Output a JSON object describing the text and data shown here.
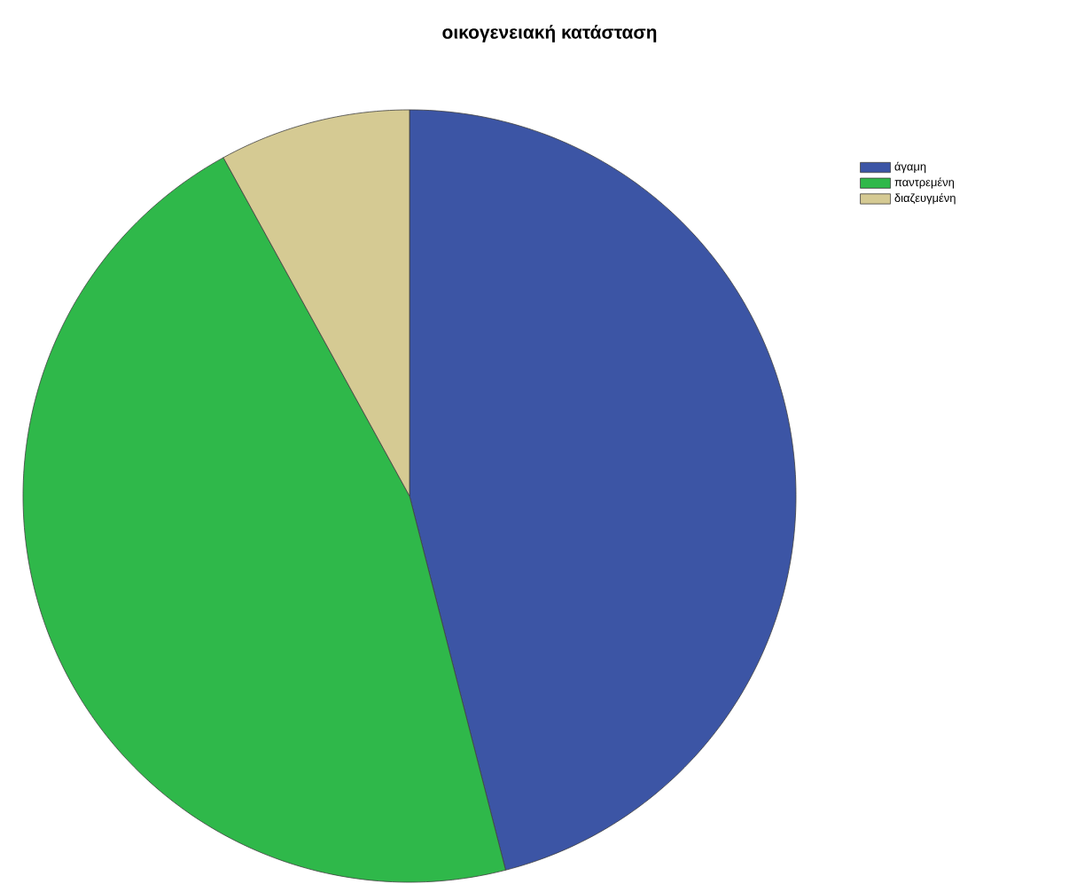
{
  "chart_data": {
    "type": "pie",
    "title": "οικογενειακή κατάσταση",
    "categories": [
      "άγαμη",
      "παντρεμένη",
      "διαζευγμένη"
    ],
    "values": [
      46,
      46,
      8
    ],
    "colors": [
      "#3c55a5",
      "#2fb84a",
      "#d5ca93"
    ],
    "legend": "top right"
  }
}
